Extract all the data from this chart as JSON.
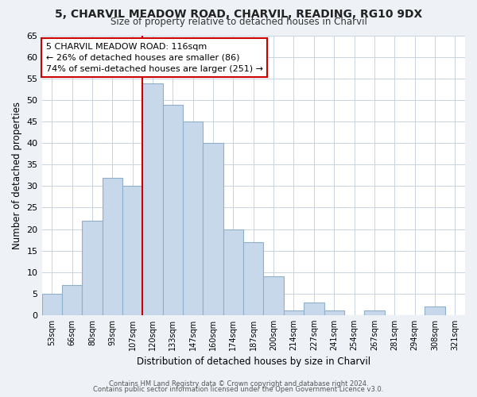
{
  "title1": "5, CHARVIL MEADOW ROAD, CHARVIL, READING, RG10 9DX",
  "title2": "Size of property relative to detached houses in Charvil",
  "xlabel": "Distribution of detached houses by size in Charvil",
  "ylabel": "Number of detached properties",
  "bar_labels": [
    "53sqm",
    "66sqm",
    "80sqm",
    "93sqm",
    "107sqm",
    "120sqm",
    "133sqm",
    "147sqm",
    "160sqm",
    "174sqm",
    "187sqm",
    "200sqm",
    "214sqm",
    "227sqm",
    "241sqm",
    "254sqm",
    "267sqm",
    "281sqm",
    "294sqm",
    "308sqm",
    "321sqm"
  ],
  "bar_values": [
    5,
    7,
    22,
    32,
    30,
    54,
    49,
    45,
    40,
    20,
    17,
    9,
    1,
    3,
    1,
    0,
    1,
    0,
    0,
    2,
    0
  ],
  "bar_color": "#c8d8eb",
  "bar_edge_color": "#8fb0cc",
  "vline_color": "#cc0000",
  "vline_index": 5,
  "ylim": [
    0,
    65
  ],
  "yticks": [
    0,
    5,
    10,
    15,
    20,
    25,
    30,
    35,
    40,
    45,
    50,
    55,
    60,
    65
  ],
  "annotation_title": "5 CHARVIL MEADOW ROAD: 116sqm",
  "annotation_line1": "← 26% of detached houses are smaller (86)",
  "annotation_line2": "74% of semi-detached houses are larger (251) →",
  "footer1": "Contains HM Land Registry data © Crown copyright and database right 2024.",
  "footer2": "Contains public sector information licensed under the Open Government Licence v3.0.",
  "bg_color": "#eef2f7",
  "plot_bg_color": "#ffffff",
  "grid_color": "#c8d4e0"
}
